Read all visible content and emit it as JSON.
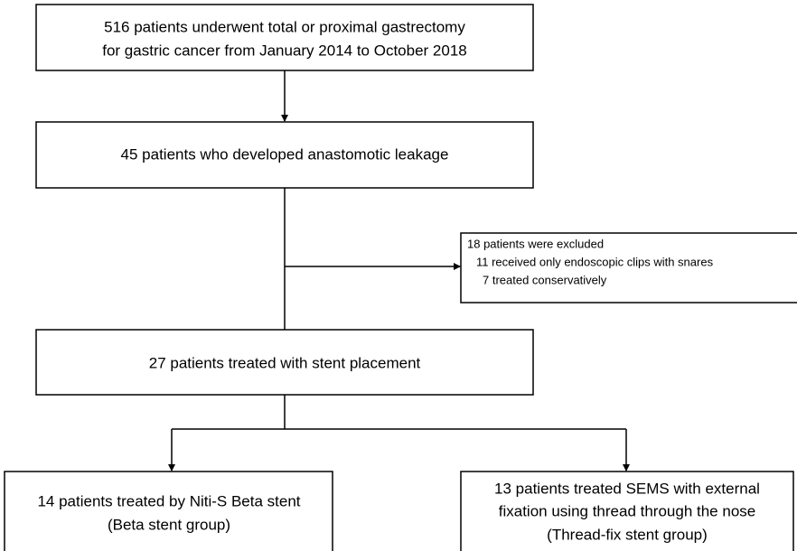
{
  "nodes": [
    {
      "lines": [
        "516 patients underwent total or proximal gastrectomy",
        "for gastric cancer from January 2014 to October 2018"
      ]
    },
    {
      "lines": [
        "45 patients who developed anastomotic leakage"
      ]
    },
    {
      "lines": [
        "18 patients were excluded",
        "11 received only endoscopic clips with snares",
        "7 treated conservatively"
      ]
    },
    {
      "lines": [
        "27 patients treated with stent placement"
      ]
    },
    {
      "lines": [
        "14 patients treated by Niti-S Beta stent",
        "(Beta stent group)"
      ]
    },
    {
      "lines": [
        "13 patients treated SEMS with external",
        "fixation using thread through the nose",
        "(Thread-fix stent group)"
      ]
    }
  ]
}
